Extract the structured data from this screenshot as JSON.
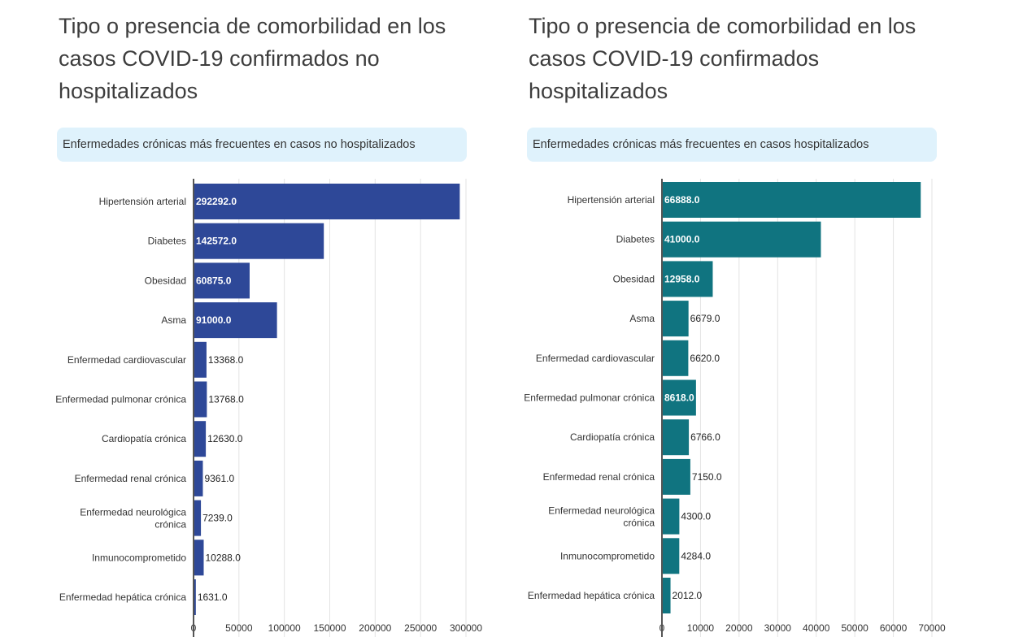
{
  "charts": [
    {
      "title": "Tipo o presencia de comorbilidad en los casos COVID-19 confirmados no hospitalizados",
      "subtitle": "Enfermedades crónicas más frecuentes en casos no hospitalizados"
    },
    {
      "title": "Tipo o presencia de comorbilidad en los casos COVID-19 confirmados hospitalizados",
      "subtitle": "Enfermedades crónicas más frecuentes en casos hospitalizados"
    }
  ],
  "chart_data": [
    {
      "type": "bar",
      "orientation": "horizontal",
      "title": "Tipo o presencia de comorbilidad en los casos COVID-19 confirmados no hospitalizados",
      "subtitle": "Enfermedades crónicas más frecuentes en casos no hospitalizados",
      "categories": [
        "Hipertensión arterial",
        "Diabetes",
        "Obesidad",
        "Asma",
        "Enfermedad cardiovascular",
        "Enfermedad pulmonar crónica",
        "Cardiopatía crónica",
        "Enfermedad renal crónica",
        "Enfermedad neurológica crónica",
        "Inmunocomprometido",
        "Enfermedad hepática crónica"
      ],
      "values": [
        292292.0,
        142572.0,
        60875.0,
        91000.0,
        13368.0,
        13768.0,
        12630.0,
        9361.0,
        7239.0,
        10288.0,
        1631.0
      ],
      "value_labels": [
        "292292.0",
        "142572.0",
        "60875.0",
        "91000.0",
        "13368.0",
        "13768.0",
        "12630.0",
        "9361.0",
        "7239.0",
        "10288.0",
        "1631.0"
      ],
      "xlim": [
        0,
        300000
      ],
      "xticks": [
        0,
        50000,
        100000,
        150000,
        200000,
        250000,
        300000
      ],
      "xtick_labels": [
        "0",
        "50000",
        "100000",
        "150000",
        "200000",
        "250000",
        "300000"
      ],
      "grid": true,
      "color": "#2e4898"
    },
    {
      "type": "bar",
      "orientation": "horizontal",
      "title": "Tipo o presencia de comorbilidad en los casos COVID-19 confirmados hospitalizados",
      "subtitle": "Enfermedades crónicas más frecuentes en casos hospitalizados",
      "categories": [
        "Hipertensión arterial",
        "Diabetes",
        "Obesidad",
        "Asma",
        "Enfermedad cardiovascular",
        "Enfermedad pulmonar crónica",
        "Cardiopatía crónica",
        "Enfermedad renal crónica",
        "Enfermedad neurológica crónica",
        "Inmunocomprometido",
        "Enfermedad hepática crónica"
      ],
      "values": [
        66888.0,
        41000.0,
        12958.0,
        6679.0,
        6620.0,
        8618.0,
        6766.0,
        7150.0,
        4300.0,
        4284.0,
        2012.0
      ],
      "value_labels": [
        "66888.0",
        "41000.0",
        "12958.0",
        "6679.0",
        "6620.0",
        "8618.0",
        "6766.0",
        "7150.0",
        "4300.0",
        "4284.0",
        "2012.0"
      ],
      "xlim": [
        0,
        70000
      ],
      "xticks": [
        0,
        10000,
        20000,
        30000,
        40000,
        50000,
        60000,
        70000
      ],
      "xtick_labels": [
        "0",
        "10000",
        "20000",
        "30000",
        "40000",
        "50000",
        "60000",
        "70000"
      ],
      "grid": true,
      "color": "#107480"
    }
  ]
}
